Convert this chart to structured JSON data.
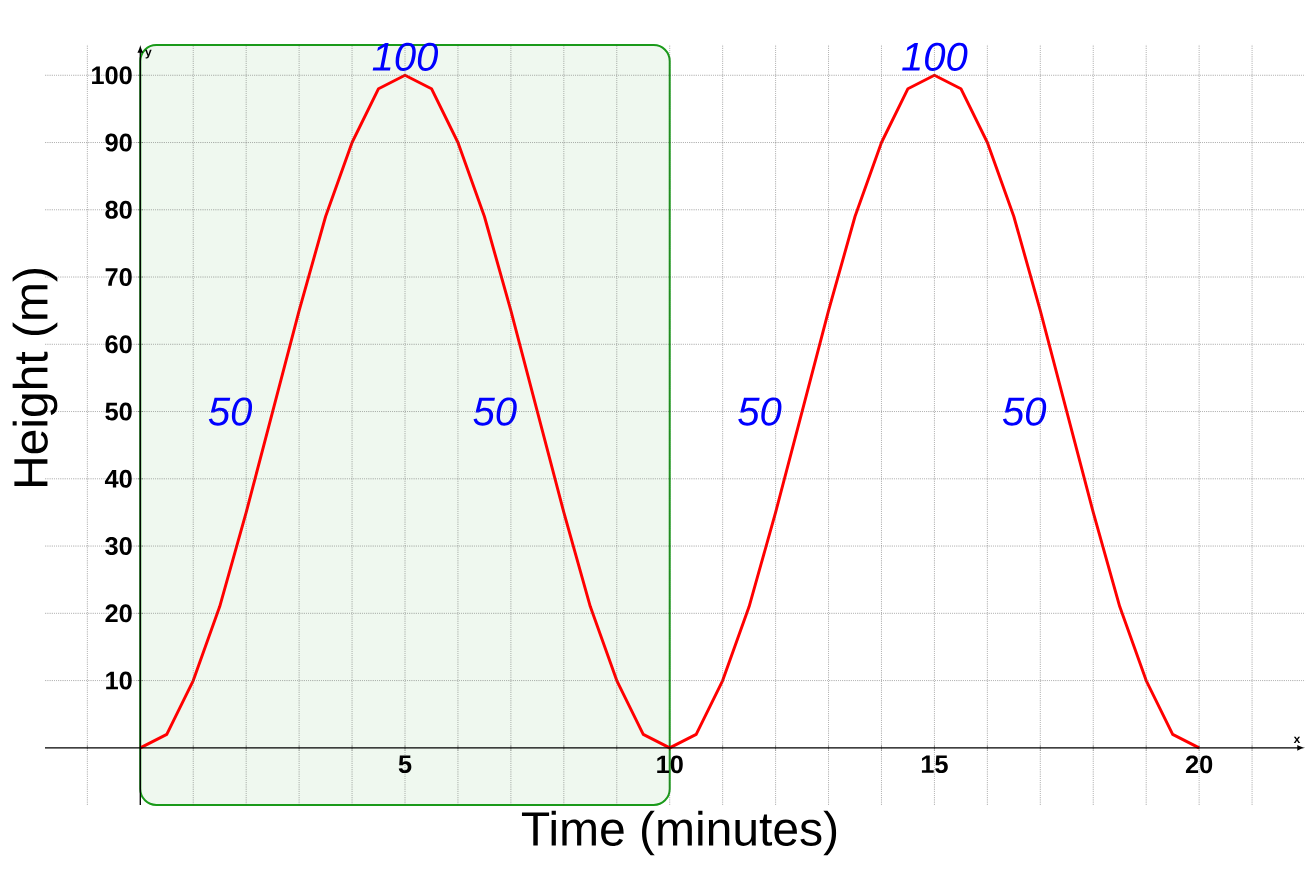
{
  "chart_data": {
    "type": "line",
    "xlabel": "Time (minutes)",
    "ylabel": "Height (m)",
    "x": [
      0,
      0.5,
      1,
      1.5,
      2,
      2.5,
      3,
      3.5,
      4,
      4.5,
      5,
      5.5,
      6,
      6.5,
      7,
      7.5,
      8,
      8.5,
      9,
      9.5,
      10,
      10.5,
      11,
      11.5,
      12,
      12.5,
      13,
      13.5,
      14,
      14.5,
      15,
      15.5,
      16,
      16.5,
      17,
      17.5,
      18,
      18.5,
      19,
      19.5,
      20
    ],
    "series": [
      {
        "color": "#ff0000",
        "values": [
          0,
          2,
          10,
          21,
          35,
          50,
          65,
          79,
          90,
          98,
          100,
          98,
          90,
          79,
          65,
          50,
          35,
          21,
          10,
          2,
          0,
          2,
          10,
          21,
          35,
          50,
          65,
          79,
          90,
          98,
          100,
          98,
          90,
          79,
          65,
          50,
          35,
          21,
          10,
          2,
          0
        ]
      }
    ],
    "xlim": [
      -1.8,
      22
    ],
    "ylim": [
      -8.5,
      104.5
    ],
    "xticks": [
      {
        "value": -1,
        "label": null
      },
      {
        "value": 0,
        "label": null
      },
      {
        "value": 1,
        "label": null
      },
      {
        "value": 2,
        "label": null
      },
      {
        "value": 3,
        "label": null
      },
      {
        "value": 4,
        "label": null
      },
      5,
      {
        "value": 6,
        "label": null
      },
      {
        "value": 7,
        "label": null
      },
      {
        "value": 8,
        "label": null
      },
      {
        "value": 9,
        "label": null
      },
      10,
      {
        "value": 11,
        "label": null
      },
      {
        "value": 12,
        "label": null
      },
      {
        "value": 13,
        "label": null
      },
      {
        "value": 14,
        "label": null
      },
      15,
      {
        "value": 16,
        "label": null
      },
      {
        "value": 17,
        "label": null
      },
      {
        "value": 18,
        "label": null
      },
      {
        "value": 19,
        "label": null
      },
      20,
      {
        "value": 21,
        "label": null
      }
    ],
    "yticks": [
      10,
      20,
      30,
      40,
      50,
      60,
      70,
      80,
      90,
      100
    ],
    "grid": true,
    "marker": "none",
    "line_style": "solid",
    "bands": [
      {
        "axis": "x",
        "from": 0,
        "to": 10,
        "color": "#1a9a1a"
      }
    ],
    "annotations": [
      "x",
      "y",
      {
        "text": "100",
        "x": 5,
        "y": 100
      },
      {
        "text": "100",
        "x": 15,
        "y": 100
      },
      {
        "text": "50",
        "x": 2.5,
        "y": 50
      },
      {
        "text": "50",
        "x": 7.5,
        "y": 50
      },
      {
        "text": "50",
        "x": 12.5,
        "y": 50
      },
      {
        "text": "50",
        "x": 17.5,
        "y": 50
      }
    ]
  }
}
